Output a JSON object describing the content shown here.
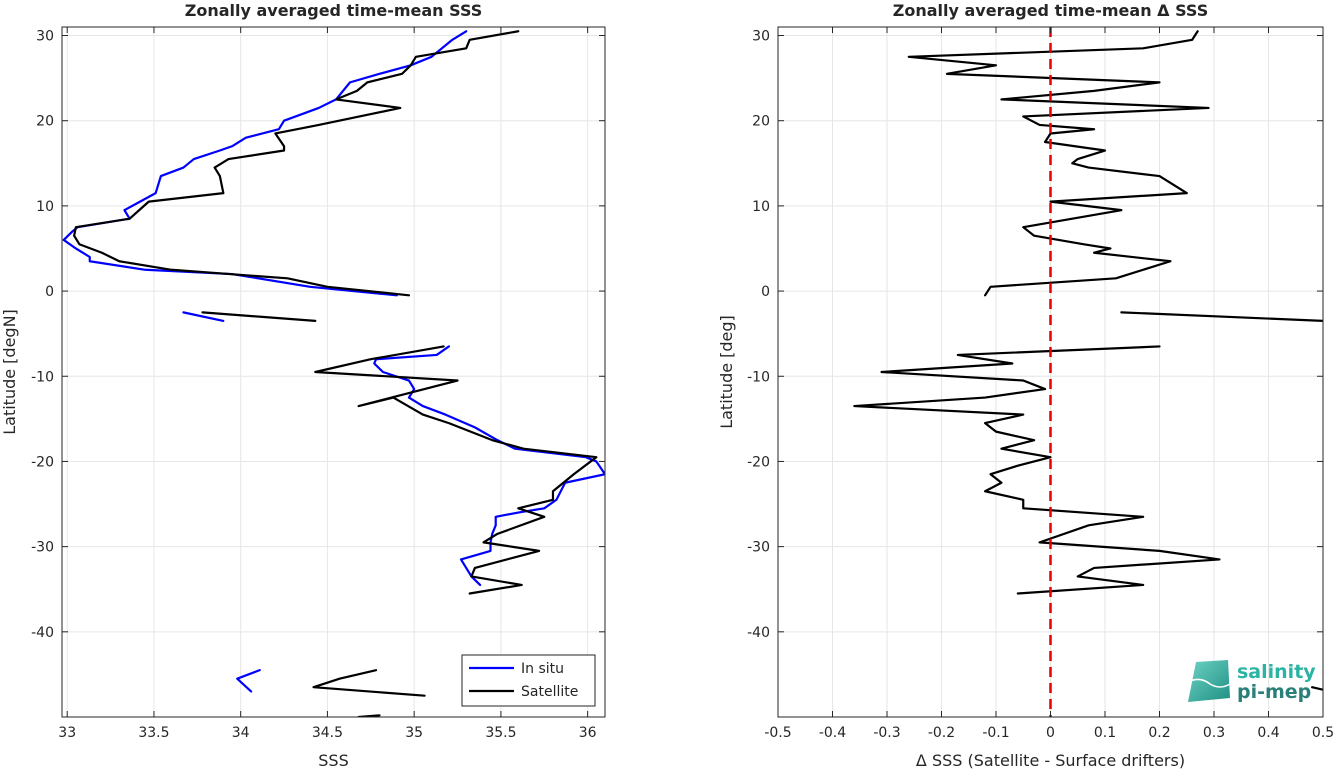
{
  "chart_data": [
    {
      "type": "line",
      "title": "Zonally averaged time-mean SSS",
      "xlabel": "SSS",
      "ylabel": "Latitude [degN]",
      "xlim": [
        32.97,
        36.1
      ],
      "ylim": [
        -50,
        31
      ],
      "x_ticks": [
        "33",
        "33.5",
        "34",
        "34.5",
        "35",
        "35.5",
        "36"
      ],
      "y_ticks": [
        "30",
        "20",
        "10",
        "0",
        "-10",
        "-20",
        "-30",
        "-40"
      ],
      "grid": true,
      "legend_position": "bottom-right",
      "series": [
        {
          "name": "In situ",
          "color": "#0000ff",
          "segments": [
            [
              [
                35.3,
                30.5
              ],
              [
                35.22,
                29.5
              ],
              [
                35.1,
                27.5
              ],
              [
                34.98,
                26.5
              ],
              [
                34.8,
                25.5
              ],
              [
                34.63,
                24.5
              ],
              [
                34.55,
                22.5
              ],
              [
                34.45,
                21.5
              ],
              [
                34.25,
                20
              ],
              [
                34.22,
                19
              ],
              [
                34.03,
                18
              ],
              [
                33.95,
                17
              ],
              [
                33.88,
                16.5
              ],
              [
                33.73,
                15.5
              ],
              [
                33.67,
                14.5
              ],
              [
                33.54,
                13.5
              ],
              [
                33.51,
                11.5
              ],
              [
                33.42,
                10.5
              ],
              [
                33.33,
                9.5
              ],
              [
                33.36,
                8.5
              ],
              [
                33.06,
                7.5
              ],
              [
                33.03,
                7
              ],
              [
                32.98,
                6
              ],
              [
                33.05,
                5
              ],
              [
                33.13,
                4
              ],
              [
                33.13,
                3.5
              ],
              [
                33.45,
                2.5
              ],
              [
                33.95,
                2
              ],
              [
                34.4,
                0.5
              ],
              [
                34.9,
                -0.5
              ]
            ],
            [
              [
                33.67,
                -2.5
              ],
              [
                33.9,
                -3.5
              ]
            ],
            [
              [
                35.2,
                -6.5
              ],
              [
                35.13,
                -7.5
              ],
              [
                34.78,
                -8
              ],
              [
                34.77,
                -8.5
              ],
              [
                34.82,
                -9.5
              ],
              [
                34.97,
                -10.5
              ],
              [
                35,
                -11.5
              ],
              [
                34.97,
                -12.5
              ],
              [
                35.05,
                -13.5
              ],
              [
                35.18,
                -14.5
              ],
              [
                35.35,
                -16
              ],
              [
                35.48,
                -17.5
              ],
              [
                35.58,
                -18.5
              ],
              [
                35.99,
                -19.5
              ],
              [
                36.05,
                -20
              ],
              [
                36.1,
                -21.5
              ],
              [
                35.87,
                -22.5
              ],
              [
                35.82,
                -24.5
              ],
              [
                35.75,
                -25.5
              ],
              [
                35.6,
                -26
              ],
              [
                35.47,
                -26.5
              ],
              [
                35.47,
                -27.5
              ],
              [
                35.45,
                -28.5
              ],
              [
                35.44,
                -29.5
              ],
              [
                35.44,
                -30.5
              ],
              [
                35.27,
                -31.5
              ],
              [
                35.33,
                -33.5
              ],
              [
                35.38,
                -34.5
              ]
            ],
            [
              [
                34.11,
                -44.5
              ],
              [
                33.98,
                -45.5
              ],
              [
                34.06,
                -47
              ]
            ]
          ]
        },
        {
          "name": "Satellite",
          "color": "#000000",
          "segments": [
            [
              [
                35.6,
                30.5
              ],
              [
                35.32,
                29.5
              ],
              [
                35.3,
                28.5
              ],
              [
                35.01,
                27.5
              ],
              [
                34.98,
                26.5
              ],
              [
                34.93,
                25.5
              ],
              [
                34.73,
                24.5
              ],
              [
                34.67,
                23.5
              ],
              [
                34.55,
                22.5
              ],
              [
                34.92,
                21.5
              ],
              [
                34.45,
                19.5
              ],
              [
                34.2,
                18.5
              ],
              [
                34.25,
                17
              ],
              [
                34.25,
                16.5
              ],
              [
                33.93,
                15.5
              ],
              [
                33.85,
                14.5
              ],
              [
                33.88,
                13.5
              ],
              [
                33.9,
                11.5
              ],
              [
                33.47,
                10.5
              ],
              [
                33.36,
                8.5
              ],
              [
                33.05,
                7.5
              ],
              [
                33.04,
                6.5
              ],
              [
                33.07,
                5.5
              ],
              [
                33.2,
                4.5
              ],
              [
                33.3,
                3.5
              ],
              [
                33.6,
                2.5
              ],
              [
                34.27,
                1.5
              ],
              [
                34.5,
                0.5
              ],
              [
                34.97,
                -0.5
              ]
            ],
            [
              [
                33.78,
                -2.5
              ],
              [
                34.43,
                -3.5
              ]
            ],
            [
              [
                35.17,
                -6.5
              ],
              [
                34.75,
                -8
              ],
              [
                34.43,
                -9.5
              ],
              [
                35.25,
                -10.5
              ],
              [
                34.68,
                -13.5
              ],
              [
                34.88,
                -12.5
              ],
              [
                35.05,
                -14.5
              ],
              [
                35.2,
                -15.5
              ],
              [
                35.45,
                -17.5
              ],
              [
                35.63,
                -18.5
              ],
              [
                36.05,
                -19.5
              ],
              [
                35.92,
                -21.5
              ],
              [
                35.8,
                -23.5
              ],
              [
                35.8,
                -24.5
              ],
              [
                35.6,
                -25.5
              ],
              [
                35.75,
                -26.5
              ],
              [
                35.48,
                -28.5
              ],
              [
                35.4,
                -29.5
              ],
              [
                35.72,
                -30.5
              ],
              [
                35.35,
                -32.5
              ],
              [
                35.33,
                -33.5
              ],
              [
                35.62,
                -34.5
              ],
              [
                35.32,
                -35.5
              ]
            ],
            [
              [
                34.78,
                -44.5
              ],
              [
                34.57,
                -45.5
              ],
              [
                34.42,
                -46.5
              ],
              [
                35.06,
                -47.5
              ]
            ],
            [
              [
                34.68,
                -50
              ],
              [
                34.8,
                -49.8
              ]
            ]
          ]
        }
      ]
    },
    {
      "type": "line",
      "title": "Zonally averaged time-mean Δ SSS",
      "xlabel": "Δ SSS (Satellite - Surface drifters)",
      "ylabel": "Latitude [deg]",
      "xlim": [
        -0.5,
        0.5
      ],
      "ylim": [
        -50,
        31
      ],
      "x_ticks": [
        "-0.5",
        "-0.4",
        "-0.3",
        "-0.2",
        "-0.1",
        "0",
        "0.1",
        "0.2",
        "0.3",
        "0.4",
        "0.5"
      ],
      "y_ticks": [
        "30",
        "20",
        "10",
        "0",
        "-10",
        "-20",
        "-30",
        "-40"
      ],
      "grid": true,
      "reference_line": {
        "x": 0,
        "color": "#e60000",
        "style": "dashed"
      },
      "series": [
        {
          "color": "#000000",
          "segments": [
            [
              [
                0.27,
                30.5
              ],
              [
                0.26,
                29.5
              ],
              [
                0.17,
                28.5
              ],
              [
                -0.26,
                27.5
              ],
              [
                -0.1,
                26.5
              ],
              [
                -0.19,
                25.5
              ],
              [
                0.2,
                24.5
              ],
              [
                0.08,
                23.5
              ],
              [
                -0.09,
                22.5
              ],
              [
                0.29,
                21.5
              ],
              [
                -0.05,
                20.5
              ],
              [
                -0.02,
                19.5
              ],
              [
                0.08,
                19
              ],
              [
                0.0,
                18.5
              ],
              [
                -0.01,
                17.5
              ],
              [
                0.1,
                16.5
              ],
              [
                0.05,
                15.5
              ],
              [
                0.04,
                15
              ],
              [
                0.07,
                14.5
              ],
              [
                0.2,
                13.5
              ],
              [
                0.25,
                11.5
              ],
              [
                0.0,
                10.5
              ],
              [
                0.13,
                9.5
              ],
              [
                -0.05,
                7.5
              ],
              [
                -0.03,
                6.5
              ],
              [
                0.06,
                5.5
              ],
              [
                0.11,
                5
              ],
              [
                0.08,
                4.5
              ],
              [
                0.22,
                3.5
              ],
              [
                0.12,
                1.5
              ],
              [
                -0.11,
                0.5
              ],
              [
                -0.12,
                -0.5
              ]
            ],
            [
              [
                0.13,
                -2.5
              ],
              [
                0.5,
                -3.5
              ]
            ],
            [
              [
                0.2,
                -6.5
              ],
              [
                -0.17,
                -7.5
              ],
              [
                -0.07,
                -8.5
              ],
              [
                -0.31,
                -9.5
              ],
              [
                -0.05,
                -10.5
              ],
              [
                -0.01,
                -11.5
              ],
              [
                -0.12,
                -12.5
              ],
              [
                -0.36,
                -13.5
              ],
              [
                -0.05,
                -14.5
              ],
              [
                -0.12,
                -15.5
              ],
              [
                -0.1,
                -16.5
              ],
              [
                -0.03,
                -17.5
              ],
              [
                -0.09,
                -18.5
              ],
              [
                0.0,
                -19.5
              ],
              [
                -0.06,
                -20.5
              ],
              [
                -0.11,
                -21.5
              ],
              [
                -0.09,
                -22.5
              ],
              [
                -0.12,
                -23.5
              ],
              [
                -0.05,
                -24.5
              ],
              [
                -0.05,
                -25.5
              ],
              [
                0.17,
                -26.5
              ],
              [
                0.07,
                -27.5
              ],
              [
                -0.02,
                -29.5
              ],
              [
                0.2,
                -30.5
              ],
              [
                0.31,
                -31.5
              ],
              [
                0.08,
                -32.5
              ],
              [
                0.05,
                -33.5
              ],
              [
                0.17,
                -34.5
              ],
              [
                -0.06,
                -35.5
              ]
            ],
            [
              [
                0.48,
                -46.5
              ],
              [
                0.5,
                -46.8
              ]
            ]
          ]
        }
      ]
    }
  ],
  "legend": {
    "items": [
      {
        "label": "In situ",
        "color": "#0000ff"
      },
      {
        "label": "Satellite",
        "color": "#000000"
      }
    ]
  },
  "logo": {
    "line1": "salinity",
    "line2": "pi-mep"
  }
}
